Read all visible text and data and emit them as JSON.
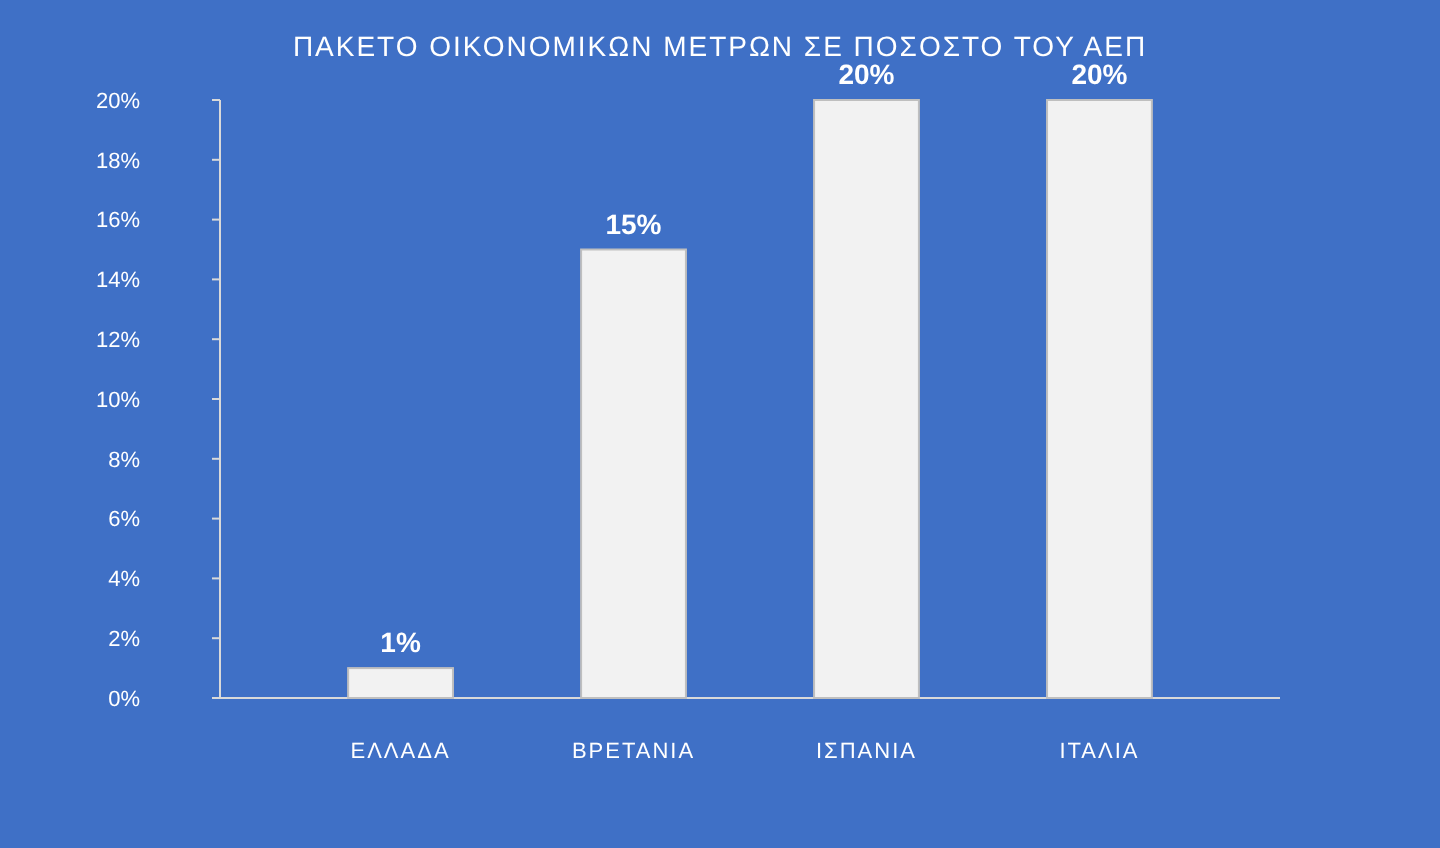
{
  "chart_data": {
    "type": "bar",
    "title": "ΠΑΚΕΤΟ  ΟΙΚΟΝΟΜΙΚΩΝ ΜΕΤΡΩΝ ΣΕ ΠΟΣΟΣΤΟ ΤΟΥ ΑΕΠ",
    "categories": [
      "ΕΛΛΑΔΑ",
      "ΒΡΕΤΑΝΙΑ",
      "ΙΣΠΑΝΙΑ",
      "ΙΤΑΛΙΑ"
    ],
    "values": [
      1,
      15,
      20,
      20
    ],
    "color": "#f2f2f2",
    "value_labels": [
      "1%",
      "15%",
      "20%",
      "20%"
    ],
    "ylim": [
      0,
      20
    ],
    "yticks": [
      {
        "value": 0,
        "label": "0%"
      },
      {
        "value": 2,
        "label": "2%"
      },
      {
        "value": 4,
        "label": "4%"
      },
      {
        "value": 6,
        "label": "6%"
      },
      {
        "value": 8,
        "label": "8%"
      },
      {
        "value": 10,
        "label": "10%"
      },
      {
        "value": 12,
        "label": "12%"
      },
      {
        "value": 14,
        "label": "14%"
      },
      {
        "value": 16,
        "label": "16%"
      },
      {
        "value": 18,
        "label": "18%"
      },
      {
        "value": 20,
        "label": "20%"
      }
    ]
  }
}
